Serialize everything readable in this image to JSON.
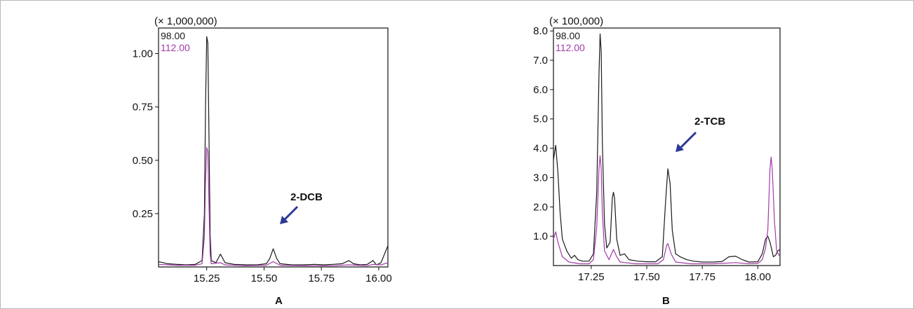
{
  "colors": {
    "series1": "#1a1a1a",
    "series2": "#a23aa8",
    "arrow": "#2b3896",
    "frame": "#111111"
  },
  "chart_data": [
    {
      "type": "line",
      "panel_label": "A",
      "scale_label": "(× 1,000,000)",
      "xlim": [
        15.04,
        16.04
      ],
      "ylim": [
        0,
        1.12
      ],
      "x_ticks": [
        15.25,
        15.5,
        15.75,
        16.0
      ],
      "x_tick_labels": [
        "15.25",
        "15.50",
        "15.75",
        "16.00"
      ],
      "y_ticks": [
        0.25,
        0.5,
        0.75,
        1.0
      ],
      "y_tick_labels": [
        "0.25",
        "0.50",
        "0.75",
        "1.00"
      ],
      "annotation": {
        "text": "2-DCB",
        "points_to": [
          15.54,
          0.18
        ]
      },
      "series": [
        {
          "name": "98.00",
          "points": [
            [
              15.04,
              0.025
            ],
            [
              15.08,
              0.015
            ],
            [
              15.12,
              0.012
            ],
            [
              15.16,
              0.01
            ],
            [
              15.2,
              0.012
            ],
            [
              15.23,
              0.03
            ],
            [
              15.24,
              0.25
            ],
            [
              15.245,
              0.75
            ],
            [
              15.25,
              1.08
            ],
            [
              15.255,
              1.05
            ],
            [
              15.26,
              0.62
            ],
            [
              15.265,
              0.15
            ],
            [
              15.27,
              0.03
            ],
            [
              15.29,
              0.02
            ],
            [
              15.31,
              0.06
            ],
            [
              15.33,
              0.02
            ],
            [
              15.37,
              0.012
            ],
            [
              15.42,
              0.01
            ],
            [
              15.47,
              0.01
            ],
            [
              15.51,
              0.015
            ],
            [
              15.525,
              0.04
            ],
            [
              15.54,
              0.085
            ],
            [
              15.555,
              0.04
            ],
            [
              15.57,
              0.015
            ],
            [
              15.62,
              0.01
            ],
            [
              15.67,
              0.01
            ],
            [
              15.72,
              0.012
            ],
            [
              15.76,
              0.01
            ],
            [
              15.8,
              0.012
            ],
            [
              15.84,
              0.015
            ],
            [
              15.87,
              0.03
            ],
            [
              15.89,
              0.015
            ],
            [
              15.92,
              0.01
            ],
            [
              15.95,
              0.012
            ],
            [
              15.975,
              0.03
            ],
            [
              15.99,
              0.01
            ],
            [
              16.01,
              0.02
            ],
            [
              16.025,
              0.06
            ],
            [
              16.04,
              0.1
            ]
          ]
        },
        {
          "name": "112.00",
          "points": [
            [
              15.04,
              0.012
            ],
            [
              15.12,
              0.008
            ],
            [
              15.2,
              0.008
            ],
            [
              15.23,
              0.015
            ],
            [
              15.24,
              0.14
            ],
            [
              15.245,
              0.4
            ],
            [
              15.25,
              0.56
            ],
            [
              15.255,
              0.54
            ],
            [
              15.26,
              0.3
            ],
            [
              15.265,
              0.06
            ],
            [
              15.27,
              0.015
            ],
            [
              15.31,
              0.02
            ],
            [
              15.33,
              0.01
            ],
            [
              15.42,
              0.006
            ],
            [
              15.51,
              0.008
            ],
            [
              15.54,
              0.025
            ],
            [
              15.57,
              0.008
            ],
            [
              15.67,
              0.006
            ],
            [
              15.8,
              0.006
            ],
            [
              15.87,
              0.01
            ],
            [
              15.95,
              0.006
            ],
            [
              15.975,
              0.012
            ],
            [
              16.01,
              0.01
            ],
            [
              16.04,
              0.02
            ]
          ]
        }
      ]
    },
    {
      "type": "line",
      "panel_label": "B",
      "scale_label": "(× 100,000)",
      "xlim": [
        17.08,
        18.1
      ],
      "ylim": [
        0,
        8.1
      ],
      "x_ticks": [
        17.25,
        17.5,
        17.75,
        18.0
      ],
      "x_tick_labels": [
        "17.25",
        "17.50",
        "17.75",
        "18.00"
      ],
      "y_ticks": [
        1.0,
        2.0,
        3.0,
        4.0,
        5.0,
        6.0,
        7.0,
        8.0
      ],
      "y_tick_labels": [
        "1.0",
        "2.0",
        "3.0",
        "4.0",
        "5.0",
        "6.0",
        "7.0",
        "8.0"
      ],
      "annotation": {
        "text": "2-TCB",
        "points_to": [
          17.6,
          4.2
        ]
      },
      "series": [
        {
          "name": "98.00",
          "points": [
            [
              17.08,
              3.6
            ],
            [
              17.09,
              4.1
            ],
            [
              17.1,
              3.2
            ],
            [
              17.11,
              1.8
            ],
            [
              17.12,
              0.9
            ],
            [
              17.14,
              0.5
            ],
            [
              17.16,
              0.25
            ],
            [
              17.175,
              0.35
            ],
            [
              17.19,
              0.2
            ],
            [
              17.21,
              0.15
            ],
            [
              17.24,
              0.15
            ],
            [
              17.26,
              0.4
            ],
            [
              17.275,
              2.5
            ],
            [
              17.285,
              6.5
            ],
            [
              17.29,
              7.9
            ],
            [
              17.295,
              7.3
            ],
            [
              17.3,
              4.2
            ],
            [
              17.31,
              1.4
            ],
            [
              17.32,
              0.6
            ],
            [
              17.335,
              0.8
            ],
            [
              17.345,
              2.3
            ],
            [
              17.35,
              2.5
            ],
            [
              17.355,
              2.3
            ],
            [
              17.365,
              0.9
            ],
            [
              17.38,
              0.35
            ],
            [
              17.4,
              0.4
            ],
            [
              17.42,
              0.2
            ],
            [
              17.46,
              0.15
            ],
            [
              17.5,
              0.13
            ],
            [
              17.54,
              0.13
            ],
            [
              17.57,
              0.3
            ],
            [
              17.585,
              2.2
            ],
            [
              17.595,
              3.3
            ],
            [
              17.605,
              2.8
            ],
            [
              17.615,
              1.2
            ],
            [
              17.63,
              0.4
            ],
            [
              17.65,
              0.3
            ],
            [
              17.68,
              0.2
            ],
            [
              17.71,
              0.15
            ],
            [
              17.75,
              0.12
            ],
            [
              17.8,
              0.12
            ],
            [
              17.84,
              0.14
            ],
            [
              17.87,
              0.3
            ],
            [
              17.9,
              0.32
            ],
            [
              17.93,
              0.2
            ],
            [
              17.96,
              0.12
            ],
            [
              18.0,
              0.13
            ],
            [
              18.02,
              0.4
            ],
            [
              18.035,
              0.9
            ],
            [
              18.045,
              1.0
            ],
            [
              18.055,
              0.8
            ],
            [
              18.07,
              0.3
            ],
            [
              18.08,
              0.35
            ],
            [
              18.09,
              0.5
            ],
            [
              18.1,
              0.55
            ]
          ]
        },
        {
          "name": "112.00",
          "points": [
            [
              17.08,
              0.9
            ],
            [
              17.09,
              1.15
            ],
            [
              17.1,
              0.8
            ],
            [
              17.12,
              0.3
            ],
            [
              17.15,
              0.12
            ],
            [
              17.2,
              0.06
            ],
            [
              17.24,
              0.06
            ],
            [
              17.26,
              0.2
            ],
            [
              17.275,
              1.3
            ],
            [
              17.285,
              3.3
            ],
            [
              17.29,
              3.75
            ],
            [
              17.295,
              3.3
            ],
            [
              17.3,
              1.8
            ],
            [
              17.31,
              0.5
            ],
            [
              17.33,
              0.2
            ],
            [
              17.35,
              0.55
            ],
            [
              17.365,
              0.3
            ],
            [
              17.38,
              0.12
            ],
            [
              17.45,
              0.06
            ],
            [
              17.55,
              0.06
            ],
            [
              17.575,
              0.2
            ],
            [
              17.59,
              0.7
            ],
            [
              17.595,
              0.75
            ],
            [
              17.61,
              0.4
            ],
            [
              17.63,
              0.12
            ],
            [
              17.7,
              0.06
            ],
            [
              17.8,
              0.06
            ],
            [
              17.9,
              0.1
            ],
            [
              17.96,
              0.06
            ],
            [
              18.0,
              0.07
            ],
            [
              18.02,
              0.2
            ],
            [
              18.035,
              0.6
            ],
            [
              18.045,
              1.2
            ],
            [
              18.055,
              3.3
            ],
            [
              18.06,
              3.7
            ],
            [
              18.065,
              3.3
            ],
            [
              18.075,
              1.5
            ],
            [
              18.085,
              0.5
            ],
            [
              18.1,
              0.3
            ]
          ]
        }
      ]
    }
  ]
}
